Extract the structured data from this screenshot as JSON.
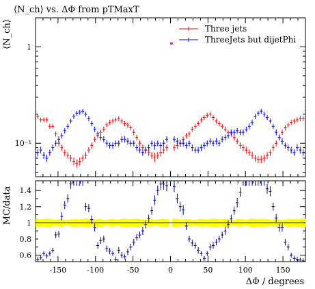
{
  "chart_data": [
    {
      "type": "scatter",
      "title": "⟨N_ch⟩ vs. ΔΦ from pTMaxT",
      "ylabel": "⟨N_ch⟩",
      "xlabel": "",
      "y_scale": "log",
      "xlim": [
        -180,
        180
      ],
      "ylim": [
        0.045,
        2.0
      ],
      "y_ticks": [
        {
          "value": 0.1,
          "label": "10⁻¹"
        },
        {
          "value": 1,
          "label": "1"
        }
      ],
      "legend_position": "top-right",
      "series": [
        {
          "name": "Three jets",
          "color": "#ff0000",
          "x": [
            -177,
            -173,
            -169,
            -165,
            -161,
            -157,
            -153,
            -149,
            -145,
            -141,
            -137,
            -133,
            -129,
            -125,
            -121,
            -117,
            -113,
            -109,
            -105,
            -101,
            -97,
            -93,
            -89,
            -85,
            -81,
            -77,
            -73,
            -69,
            -65,
            -61,
            -57,
            -53,
            -49,
            -45,
            -41,
            -37,
            -33,
            -29,
            -25,
            -21,
            -17,
            -13,
            -9,
            -5,
            5,
            9,
            13,
            17,
            21,
            25,
            29,
            33,
            37,
            41,
            45,
            49,
            53,
            57,
            61,
            65,
            69,
            73,
            77,
            81,
            85,
            89,
            93,
            97,
            101,
            105,
            109,
            113,
            117,
            121,
            125,
            129,
            133,
            137,
            141,
            145,
            149,
            153,
            157,
            161,
            165,
            169,
            173,
            177
          ],
          "values": [
            0.19,
            0.175,
            0.175,
            0.175,
            0.15,
            0.15,
            0.125,
            0.1,
            0.09,
            0.08,
            0.075,
            0.07,
            0.065,
            0.062,
            0.065,
            0.07,
            0.075,
            0.085,
            0.095,
            0.11,
            0.12,
            0.13,
            0.14,
            0.155,
            0.165,
            0.17,
            0.175,
            0.18,
            0.17,
            0.16,
            0.155,
            0.145,
            0.13,
            0.115,
            0.1,
            0.09,
            0.085,
            0.08,
            0.075,
            0.072,
            0.075,
            0.08,
            0.085,
            0.09,
            0.09,
            0.095,
            0.1,
            0.11,
            0.12,
            0.125,
            0.14,
            0.15,
            0.16,
            0.175,
            0.185,
            0.195,
            0.2,
            0.185,
            0.17,
            0.16,
            0.15,
            0.14,
            0.13,
            0.125,
            0.115,
            0.105,
            0.095,
            0.09,
            0.085,
            0.08,
            0.075,
            0.07,
            0.068,
            0.068,
            0.07,
            0.075,
            0.08,
            0.09,
            0.1,
            0.115,
            0.13,
            0.145,
            0.155,
            0.165,
            0.17,
            0.175,
            0.18,
            0.18
          ],
          "errors": [
            0.012,
            0.01,
            0.01,
            0.01,
            0.009,
            0.009,
            0.008,
            0.007,
            0.007,
            0.006,
            0.006,
            0.006,
            0.006,
            0.006,
            0.006,
            0.006,
            0.006,
            0.006,
            0.007,
            0.007,
            0.008,
            0.008,
            0.009,
            0.009,
            0.01,
            0.01,
            0.01,
            0.011,
            0.01,
            0.01,
            0.01,
            0.009,
            0.009,
            0.008,
            0.007,
            0.007,
            0.007,
            0.006,
            0.006,
            0.008,
            0.006,
            0.007,
            0.007,
            0.007,
            0.007,
            0.007,
            0.007,
            0.008,
            0.008,
            0.008,
            0.009,
            0.009,
            0.01,
            0.011,
            0.011,
            0.012,
            0.012,
            0.011,
            0.01,
            0.01,
            0.009,
            0.009,
            0.008,
            0.008,
            0.008,
            0.007,
            0.007,
            0.007,
            0.007,
            0.006,
            0.006,
            0.006,
            0.006,
            0.006,
            0.006,
            0.006,
            0.006,
            0.007,
            0.007,
            0.008,
            0.008,
            0.009,
            0.009,
            0.01,
            0.01,
            0.01,
            0.011,
            0.011
          ]
        },
        {
          "name": "ThreeJets but dijetPhi",
          "color": "#0000ff",
          "x": [
            -177,
            -173,
            -169,
            -165,
            -161,
            -157,
            -153,
            -149,
            -145,
            -141,
            -137,
            -133,
            -129,
            -125,
            -121,
            -117,
            -113,
            -109,
            -105,
            -101,
            -97,
            -93,
            -89,
            -85,
            -81,
            -77,
            -73,
            -69,
            -65,
            -61,
            -57,
            -53,
            -49,
            -45,
            -41,
            -37,
            -33,
            -29,
            -25,
            -21,
            -17,
            -13,
            -9,
            -5,
            5,
            9,
            13,
            17,
            21,
            25,
            29,
            33,
            37,
            41,
            45,
            49,
            53,
            57,
            61,
            65,
            69,
            73,
            77,
            81,
            85,
            89,
            93,
            97,
            101,
            105,
            109,
            113,
            117,
            121,
            125,
            129,
            133,
            137,
            141,
            145,
            149,
            153,
            157,
            161,
            165,
            169,
            173,
            177
          ],
          "values": [
            0.08,
            0.085,
            0.075,
            0.07,
            0.08,
            0.09,
            0.1,
            0.11,
            0.12,
            0.135,
            0.15,
            0.17,
            0.19,
            0.205,
            0.21,
            0.215,
            0.2,
            0.18,
            0.16,
            0.14,
            0.125,
            0.115,
            0.11,
            0.1,
            0.095,
            0.095,
            0.1,
            0.1,
            0.11,
            0.11,
            0.105,
            0.1,
            0.1,
            0.09,
            0.085,
            0.08,
            0.085,
            0.09,
            0.1,
            0.095,
            0.1,
            0.095,
            0.1,
            0.11,
            0.11,
            0.105,
            0.1,
            0.1,
            0.095,
            0.1,
            0.09,
            0.085,
            0.085,
            0.09,
            0.095,
            0.1,
            0.105,
            0.1,
            0.105,
            0.1,
            0.11,
            0.115,
            0.12,
            0.13,
            0.13,
            0.135,
            0.13,
            0.13,
            0.14,
            0.15,
            0.165,
            0.19,
            0.205,
            0.215,
            0.2,
            0.185,
            0.17,
            0.15,
            0.13,
            0.115,
            0.105,
            0.095,
            0.09,
            0.085,
            0.08,
            0.09,
            0.085,
            0.08
          ],
          "errors": [
            0.007,
            0.007,
            0.006,
            0.006,
            0.006,
            0.007,
            0.007,
            0.008,
            0.008,
            0.009,
            0.009,
            0.01,
            0.011,
            0.012,
            0.012,
            0.012,
            0.012,
            0.011,
            0.01,
            0.009,
            0.008,
            0.008,
            0.008,
            0.007,
            0.007,
            0.007,
            0.007,
            0.007,
            0.008,
            0.008,
            0.008,
            0.007,
            0.007,
            0.007,
            0.006,
            0.006,
            0.007,
            0.007,
            0.007,
            0.009,
            0.007,
            0.007,
            0.008,
            0.008,
            0.008,
            0.008,
            0.008,
            0.007,
            0.007,
            0.007,
            0.007,
            0.006,
            0.006,
            0.007,
            0.007,
            0.007,
            0.008,
            0.007,
            0.008,
            0.007,
            0.008,
            0.008,
            0.008,
            0.009,
            0.009,
            0.009,
            0.009,
            0.009,
            0.009,
            0.01,
            0.011,
            0.012,
            0.012,
            0.012,
            0.012,
            0.011,
            0.01,
            0.009,
            0.009,
            0.008,
            0.008,
            0.007,
            0.007,
            0.007,
            0.006,
            0.007,
            0.007,
            0.006
          ]
        }
      ]
    },
    {
      "type": "scatter",
      "title": "",
      "xlabel": "ΔΦ / degrees",
      "ylabel": "MC/data",
      "xlim": [
        -180,
        180
      ],
      "ylim": [
        0.52,
        1.52
      ],
      "x_ticks": [
        -150,
        -100,
        -50,
        0,
        50,
        100,
        150
      ],
      "y_ticks": [
        0.6,
        0.8,
        1,
        1.2,
        1.4
      ],
      "reference_line": 1,
      "band": {
        "color": "#ffff00",
        "half_width": 0.045
      },
      "series": [
        {
          "name": "",
          "color": "#00008b",
          "x": [
            -177,
            -173,
            -169,
            -165,
            -161,
            -157,
            -153,
            -149,
            -145,
            -141,
            -137,
            -133,
            -129,
            -125,
            -121,
            -117,
            -113,
            -109,
            -105,
            -101,
            -97,
            -93,
            -89,
            -85,
            -81,
            -77,
            -73,
            -69,
            -65,
            -61,
            -57,
            -53,
            -49,
            -45,
            -41,
            -37,
            -33,
            -29,
            -25,
            -21,
            -17,
            -13,
            -9,
            -5,
            5,
            9,
            13,
            17,
            21,
            25,
            29,
            33,
            37,
            41,
            45,
            49,
            53,
            57,
            61,
            65,
            69,
            73,
            77,
            81,
            85,
            89,
            93,
            97,
            101,
            105,
            109,
            113,
            117,
            121,
            125,
            129,
            133,
            137,
            141,
            145,
            149,
            153,
            157,
            161,
            165,
            169,
            173,
            177
          ],
          "values": [
            0.55,
            0.57,
            0.62,
            0.59,
            0.62,
            0.66,
            0.85,
            0.86,
            1.08,
            1.22,
            1.3,
            1.48,
            1.52,
            1.52,
            1.52,
            1.52,
            1.2,
            1.18,
            1.04,
            0.94,
            0.72,
            0.78,
            0.8,
            0.68,
            0.65,
            0.62,
            0.55,
            0.66,
            0.6,
            0.58,
            0.64,
            0.7,
            0.76,
            0.82,
            0.85,
            0.9,
            0.98,
            1.05,
            1.15,
            1.28,
            1.4,
            1.48,
            1.48,
            1.46,
            1.45,
            1.3,
            1.2,
            1.16,
            0.96,
            0.8,
            0.75,
            0.72,
            0.66,
            0.62,
            0.56,
            0.62,
            0.7,
            0.72,
            0.76,
            0.8,
            0.85,
            0.9,
            0.98,
            1.05,
            1.15,
            1.25,
            1.38,
            1.52,
            1.52,
            1.52,
            1.52,
            1.52,
            1.52,
            1.52,
            1.52,
            1.42,
            1.39,
            1.2,
            1.06,
            0.94,
            0.94,
            0.76,
            0.7,
            0.6,
            0.56,
            0.55,
            0.54,
            0.53
          ],
          "errors": [
            0.03,
            0.03,
            0.03,
            0.03,
            0.03,
            0.03,
            0.04,
            0.04,
            0.05,
            0.05,
            0.05,
            0.06,
            0.06,
            0.06,
            0.06,
            0.06,
            0.05,
            0.05,
            0.05,
            0.05,
            0.04,
            0.04,
            0.04,
            0.04,
            0.04,
            0.03,
            0.03,
            0.04,
            0.04,
            0.03,
            0.04,
            0.04,
            0.04,
            0.04,
            0.04,
            0.05,
            0.05,
            0.05,
            0.05,
            0.06,
            0.06,
            0.07,
            0.07,
            0.07,
            0.07,
            0.06,
            0.06,
            0.06,
            0.05,
            0.04,
            0.04,
            0.04,
            0.04,
            0.03,
            0.03,
            0.03,
            0.04,
            0.04,
            0.04,
            0.04,
            0.04,
            0.05,
            0.05,
            0.05,
            0.05,
            0.06,
            0.06,
            0.06,
            0.06,
            0.06,
            0.06,
            0.06,
            0.06,
            0.06,
            0.06,
            0.06,
            0.06,
            0.05,
            0.05,
            0.05,
            0.05,
            0.04,
            0.04,
            0.03,
            0.03,
            0.03,
            0.03,
            0.03
          ]
        }
      ]
    }
  ]
}
